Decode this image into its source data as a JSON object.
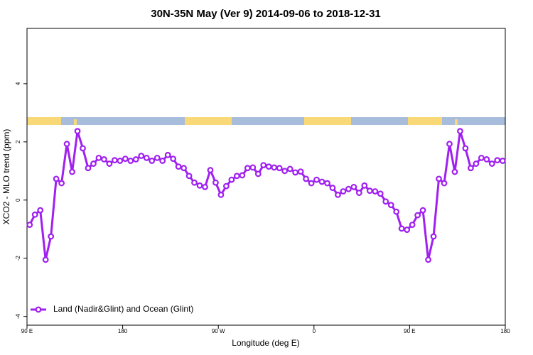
{
  "chart_data": {
    "type": "line",
    "title": "30N-35N May (Ver 9)   2014-09-06 to 2018-12-31",
    "xlabel": "Longitude (deg E)",
    "ylabel": "XCO2 - MLO trend (ppm)",
    "x": [
      92.5,
      97.5,
      102.5,
      107.5,
      112.5,
      117.5,
      122.5,
      127.5,
      132.5,
      137.5,
      142.5,
      147.5,
      152.5,
      157.5,
      162.5,
      167.5,
      172.5,
      177.5,
      182.5,
      187.5,
      192.5,
      197.5,
      202.5,
      207.5,
      212.5,
      217.5,
      222.5,
      227.5,
      232.5,
      237.5,
      242.5,
      247.5,
      252.5,
      257.5,
      262.5,
      267.5,
      272.5,
      277.5,
      282.5,
      287.5,
      292.5,
      297.5,
      302.5,
      307.5,
      312.5,
      317.5,
      322.5,
      327.5,
      332.5,
      337.5,
      342.5,
      347.5,
      352.5,
      357.5,
      362.5,
      367.5,
      372.5,
      377.5,
      382.5,
      387.5,
      392.5,
      397.5,
      402.5,
      407.5,
      412.5,
      417.5,
      422.5,
      427.5,
      432.5,
      437.5,
      442.5,
      447.5,
      452.5,
      457.5,
      462.5,
      467.5,
      472.5,
      477.5,
      482.5,
      487.5,
      492.5,
      497.5,
      502.5,
      507.5,
      512.5,
      517.5,
      522.5,
      527.5,
      532.5,
      537.5
    ],
    "series": [
      {
        "name": "Land (Nadir&Glint) and Ocean (Glint)",
        "color": "#a020f0",
        "values": [
          -0.85,
          -0.5,
          -0.35,
          -2.05,
          -1.25,
          0.73,
          0.58,
          1.93,
          0.97,
          2.37,
          1.78,
          1.1,
          1.25,
          1.45,
          1.4,
          1.25,
          1.37,
          1.35,
          1.42,
          1.35,
          1.4,
          1.52,
          1.45,
          1.35,
          1.45,
          1.35,
          1.55,
          1.42,
          1.15,
          1.1,
          0.83,
          0.6,
          0.5,
          0.45,
          1.03,
          0.6,
          0.18,
          0.48,
          0.7,
          0.83,
          0.85,
          1.1,
          1.12,
          0.9,
          1.2,
          1.15,
          1.12,
          1.1,
          1.0,
          1.07,
          0.95,
          0.98,
          0.73,
          0.58,
          0.7,
          0.63,
          0.58,
          0.42,
          0.18,
          0.3,
          0.38,
          0.45,
          0.25,
          0.5,
          0.32,
          0.3,
          0.22,
          -0.05,
          -0.17,
          -0.4,
          -0.98,
          -1.02,
          -0.85,
          -0.52,
          -0.35,
          -2.05,
          -1.25,
          0.73,
          0.58,
          1.93,
          0.97,
          2.37,
          1.78,
          1.1,
          1.25,
          1.45,
          1.4,
          1.25,
          1.37,
          1.35
        ]
      }
    ],
    "xlim": [
      90,
      540
    ],
    "xticks": [
      {
        "value": 90,
        "label": "90 E"
      },
      {
        "value": 180,
        "label": "180"
      },
      {
        "value": 270,
        "label": "90 W"
      },
      {
        "value": 360,
        "label": "0"
      },
      {
        "value": 450,
        "label": "90 E"
      },
      {
        "value": 540,
        "label": "180"
      }
    ],
    "ylim": [
      -4.3,
      5.9
    ],
    "yticks": [
      -4,
      -2,
      0,
      2,
      4
    ],
    "legend": "bottom-left"
  }
}
